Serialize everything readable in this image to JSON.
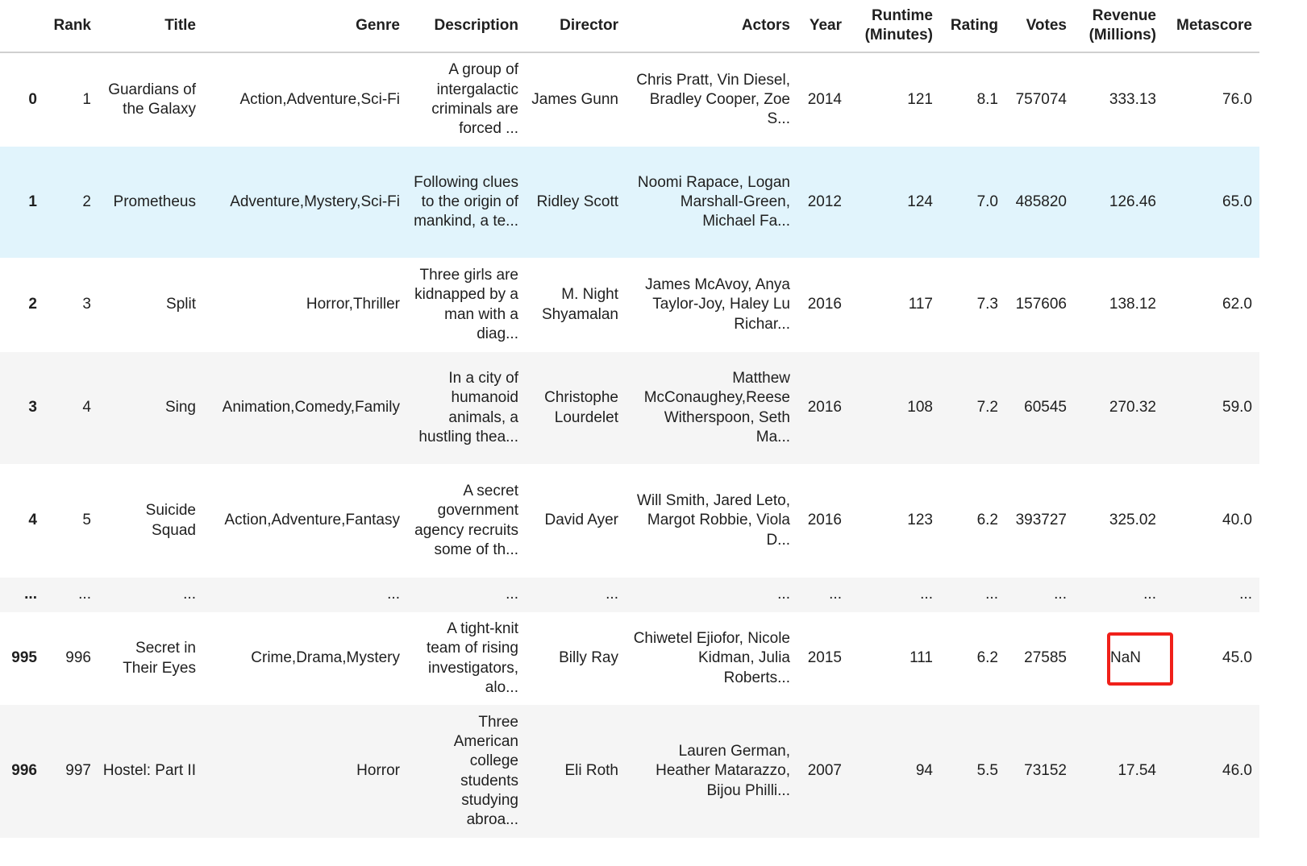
{
  "columns": [
    "",
    "Rank",
    "Title",
    "Genre",
    "Description",
    "Director",
    "Actors",
    "Year",
    "Runtime (Minutes)",
    "Rating",
    "Votes",
    "Revenue (Millions)",
    "Metascore"
  ],
  "rows": [
    {
      "index": "0",
      "cells": [
        "1",
        "Guardians of the Galaxy",
        "Action,Adventure,Sci-Fi",
        "A group of intergalactic criminals are forced ...",
        "James Gunn",
        "Chris Pratt, Vin Diesel, Bradley Cooper, Zoe S...",
        "2014",
        "121",
        "8.1",
        "757074",
        "333.13",
        "76.0"
      ]
    },
    {
      "index": "1",
      "cells": [
        "2",
        "Prometheus",
        "Adventure,Mystery,Sci-Fi",
        "Following clues to the origin of mankind, a te...",
        "Ridley Scott",
        "Noomi Rapace, Logan Marshall-Green, Michael Fa...",
        "2012",
        "124",
        "7.0",
        "485820",
        "126.46",
        "65.0"
      ]
    },
    {
      "index": "2",
      "cells": [
        "3",
        "Split",
        "Horror,Thriller",
        "Three girls are kidnapped by a man with a diag...",
        "M. Night Shyamalan",
        "James McAvoy, Anya Taylor-Joy, Haley Lu Richar...",
        "2016",
        "117",
        "7.3",
        "157606",
        "138.12",
        "62.0"
      ]
    },
    {
      "index": "3",
      "cells": [
        "4",
        "Sing",
        "Animation,Comedy,Family",
        "In a city of humanoid animals, a hustling thea...",
        "Christophe Lourdelet",
        "Matthew McConaughey,Reese Witherspoon, Seth Ma...",
        "2016",
        "108",
        "7.2",
        "60545",
        "270.32",
        "59.0"
      ]
    },
    {
      "index": "4",
      "cells": [
        "5",
        "Suicide Squad",
        "Action,Adventure,Fantasy",
        "A secret government agency recruits some of th...",
        "David Ayer",
        "Will Smith, Jared Leto, Margot Robbie, Viola D...",
        "2016",
        "123",
        "6.2",
        "393727",
        "325.02",
        "40.0"
      ]
    },
    {
      "index": "...",
      "cells": [
        "...",
        "...",
        "...",
        "...",
        "...",
        "...",
        "...",
        "...",
        "...",
        "...",
        "...",
        "..."
      ]
    },
    {
      "index": "995",
      "cells": [
        "996",
        "Secret in Their Eyes",
        "Crime,Drama,Mystery",
        "A tight-knit team of rising investigators, alo...",
        "Billy Ray",
        "Chiwetel Ejiofor, Nicole Kidman, Julia Roberts...",
        "2015",
        "111",
        "6.2",
        "27585",
        "NaN",
        "45.0"
      ]
    },
    {
      "index": "996",
      "cells": [
        "997",
        "Hostel: Part II",
        "Horror",
        "Three American college students studying abroa...",
        "Eli Roth",
        "Lauren German, Heather Matarazzo, Bijou Philli...",
        "2007",
        "94",
        "5.5",
        "73152",
        "17.54",
        "46.0"
      ]
    }
  ],
  "highlight": {
    "row_index": "995",
    "column": "Revenue (Millions)",
    "value": "NaN",
    "color": "#f0201a"
  },
  "colors": {
    "hover_row": "#e1f4fc",
    "alt_row": "#f5f5f5"
  }
}
